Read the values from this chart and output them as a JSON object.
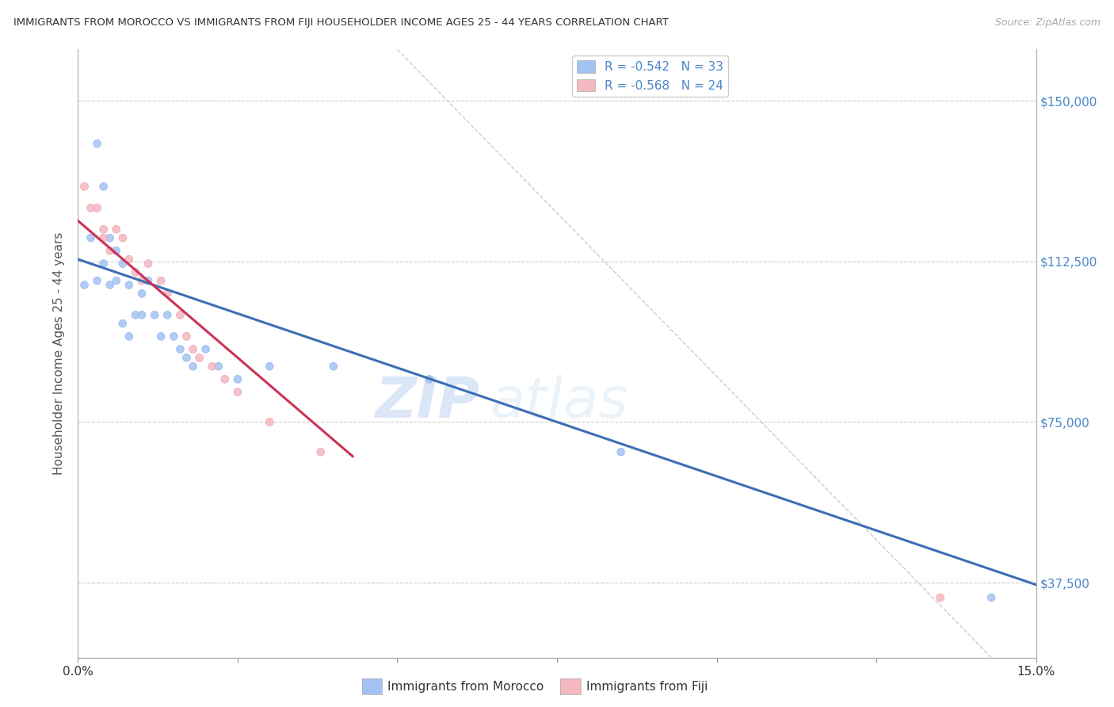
{
  "title": "IMMIGRANTS FROM MOROCCO VS IMMIGRANTS FROM FIJI HOUSEHOLDER INCOME AGES 25 - 44 YEARS CORRELATION CHART",
  "source": "Source: ZipAtlas.com",
  "ylabel": "Householder Income Ages 25 - 44 years",
  "legend_label_blue": "Immigrants from Morocco",
  "legend_label_pink": "Immigrants from Fiji",
  "legend_r_blue": "R = -0.542",
  "legend_n_blue": "N = 33",
  "legend_r_pink": "R = -0.568",
  "legend_n_pink": "N = 24",
  "xmin": 0.0,
  "xmax": 0.15,
  "ymin": 20000,
  "ymax": 162000,
  "yticks": [
    37500,
    75000,
    112500,
    150000
  ],
  "xticks": [
    0.0,
    0.025,
    0.05,
    0.075,
    0.1,
    0.125,
    0.15
  ],
  "xtick_labels": [
    "0.0%",
    "",
    "",
    "",
    "",
    "",
    "15.0%"
  ],
  "ytick_labels": [
    "$37,500",
    "$75,000",
    "$112,500",
    "$150,000"
  ],
  "color_blue": "#a4c2f4",
  "color_pink": "#f4b8c1",
  "line_color_blue": "#3d6eb5",
  "line_color_pink": "#cc3355",
  "background_color": "#ffffff",
  "watermark_zip": "ZIP",
  "watermark_atlas": "atlas",
  "morocco_x": [
    0.001,
    0.002,
    0.003,
    0.003,
    0.004,
    0.004,
    0.005,
    0.005,
    0.006,
    0.006,
    0.007,
    0.007,
    0.008,
    0.008,
    0.009,
    0.01,
    0.01,
    0.011,
    0.012,
    0.013,
    0.014,
    0.015,
    0.016,
    0.017,
    0.018,
    0.02,
    0.022,
    0.025,
    0.03,
    0.04,
    0.055,
    0.085,
    0.143
  ],
  "morocco_y": [
    107000,
    118000,
    140000,
    108000,
    130000,
    112000,
    118000,
    107000,
    115000,
    108000,
    112000,
    98000,
    107000,
    95000,
    100000,
    105000,
    100000,
    108000,
    100000,
    95000,
    100000,
    95000,
    92000,
    90000,
    88000,
    92000,
    88000,
    85000,
    88000,
    88000,
    85000,
    68000,
    34000
  ],
  "morocco_size": [
    50,
    50,
    50,
    50,
    50,
    50,
    50,
    50,
    50,
    50,
    50,
    50,
    50,
    50,
    50,
    50,
    50,
    50,
    50,
    50,
    50,
    50,
    50,
    50,
    50,
    50,
    50,
    50,
    50,
    50,
    50,
    50,
    50
  ],
  "fiji_x": [
    0.001,
    0.002,
    0.003,
    0.004,
    0.004,
    0.005,
    0.006,
    0.007,
    0.008,
    0.009,
    0.01,
    0.011,
    0.013,
    0.014,
    0.016,
    0.017,
    0.018,
    0.019,
    0.021,
    0.023,
    0.025,
    0.03,
    0.038,
    0.135
  ],
  "fiji_y": [
    130000,
    125000,
    125000,
    120000,
    118000,
    115000,
    120000,
    118000,
    113000,
    110000,
    108000,
    112000,
    108000,
    105000,
    100000,
    95000,
    92000,
    90000,
    88000,
    85000,
    82000,
    75000,
    68000,
    34000
  ],
  "fiji_size": [
    50,
    50,
    50,
    50,
    50,
    50,
    50,
    50,
    50,
    50,
    50,
    50,
    50,
    50,
    50,
    50,
    50,
    50,
    50,
    50,
    50,
    50,
    50,
    50
  ],
  "blue_line_x0": 0.0,
  "blue_line_y0": 113000,
  "blue_line_x1": 0.15,
  "blue_line_y1": 37000,
  "pink_line_x0": 0.0,
  "pink_line_y0": 122000,
  "pink_line_x1": 0.043,
  "pink_line_y1": 67000,
  "dash_line_x0": 0.05,
  "dash_line_y0": 162000,
  "dash_line_x1": 0.143,
  "dash_line_y1": 20000
}
